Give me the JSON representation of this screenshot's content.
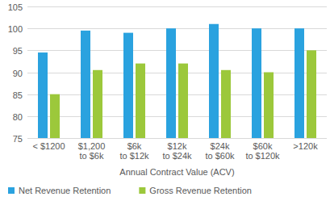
{
  "chart_data": {
    "type": "bar",
    "x_label": "Annual Contract Value (ACV)",
    "categories": [
      "< $1200",
      "$1,200 to $6k",
      "$6k to $12k",
      "$12k to $24k",
      "$24k to $60k",
      "$60k to $120k",
      ">120k"
    ],
    "series": [
      {
        "name": "Net Revenue Retention",
        "color": "#2aa2df",
        "values": [
          94.5,
          99.5,
          99,
          100,
          101,
          100,
          100
        ]
      },
      {
        "name": "Gross Revenue Retention",
        "color": "#9cc83b",
        "values": [
          85,
          90.5,
          92,
          92,
          90.5,
          90,
          95
        ]
      }
    ],
    "ylim": [
      75,
      105
    ],
    "yticks": [
      75,
      80,
      85,
      90,
      95,
      100,
      105
    ],
    "grid": true,
    "legend": "bottom"
  }
}
